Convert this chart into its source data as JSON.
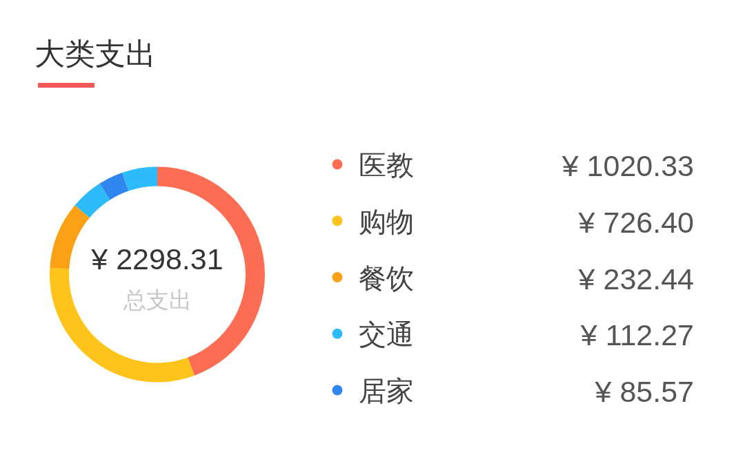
{
  "chart_data": {
    "type": "donut",
    "title": "大类支出",
    "categories": [
      "医教",
      "购物",
      "餐饮",
      "交通",
      "居家",
      null
    ],
    "values": [
      1020.33,
      726.4,
      232.44,
      112.27,
      85.57,
      121.3
    ],
    "colors": [
      "#fd6d54",
      "#fec41c",
      "#fca016",
      "#2ebbfc",
      "#2f86ef",
      "#2ebbfc"
    ],
    "value_labels": [
      "¥ 1020.33",
      "¥ 726.40",
      "¥ 232.44",
      "¥ 112.27",
      "¥ 85.57",
      null
    ],
    "annotations": [
      "¥ 2298.31",
      "总支出"
    ],
    "legend": "right"
  }
}
